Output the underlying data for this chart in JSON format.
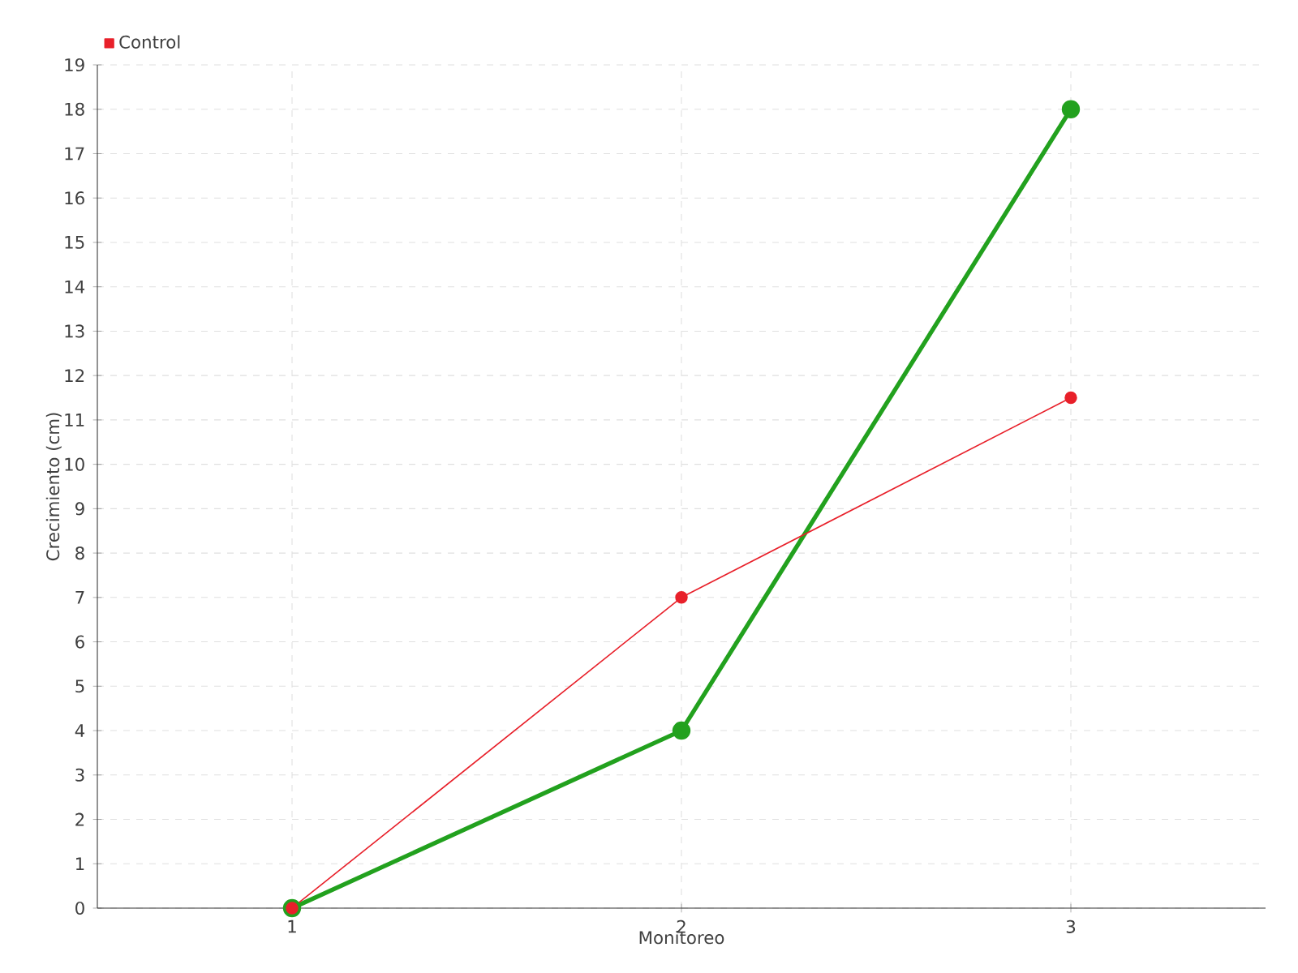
{
  "chart_data": {
    "type": "line",
    "xlabel": "Monitoreo",
    "ylabel": "Crecimiento (cm)",
    "categories": [
      "1",
      "2",
      "3"
    ],
    "series": [
      {
        "color": "#22a11e",
        "values": [
          0,
          4,
          18
        ]
      },
      {
        "name": "Control",
        "color": "#e8202a",
        "values": [
          0,
          7,
          11.5
        ]
      }
    ],
    "ylim": [
      0,
      19
    ],
    "yticks": [
      0,
      1,
      2,
      3,
      4,
      5,
      6,
      7,
      8,
      9,
      10,
      11,
      12,
      13,
      14,
      15,
      16,
      17,
      18,
      19
    ],
    "grid": true,
    "legend": "top left",
    "marker": "circle"
  }
}
